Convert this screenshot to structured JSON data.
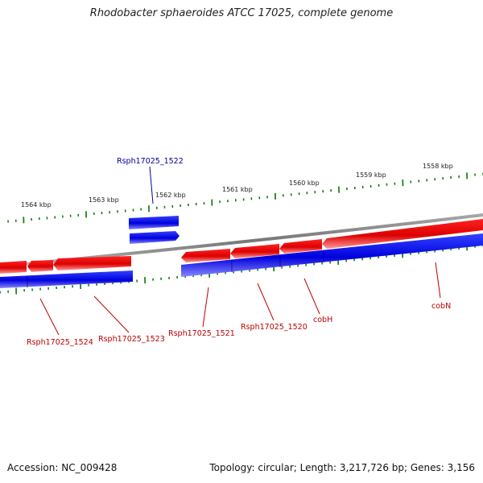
{
  "title": "Rhodobacter sphaeroides ATCC 17025, complete genome",
  "footer": {
    "accession": "Accession: NC_009428",
    "summary": "Topology: circular; Length: 3,217,726 bp; Genes: 3,156"
  },
  "colors": {
    "forward": "#0000ee",
    "reverse": "#ee0000",
    "ticks": "#007700",
    "backbone": "#888888",
    "label_forward": "#000099",
    "label_reverse": "#bb0000"
  },
  "scale_labels": [
    "1564 kbp",
    "1563 kbp",
    "1562 kbp",
    "1561 kbp",
    "1560 kbp",
    "1559 kbp",
    "1558 kbp"
  ],
  "gene_labels": [
    {
      "id": "g1522",
      "text": "Rsph17025_1522",
      "strand": "forward"
    },
    {
      "id": "g1524",
      "text": "Rsph17025_1524",
      "strand": "reverse"
    },
    {
      "id": "g1523",
      "text": "Rsph17025_1523",
      "strand": "reverse"
    },
    {
      "id": "g1521",
      "text": "Rsph17025_1521",
      "strand": "reverse"
    },
    {
      "id": "g1520",
      "text": "Rsph17025_1520",
      "strand": "reverse"
    },
    {
      "id": "cobH",
      "text": "cobH",
      "strand": "reverse"
    },
    {
      "id": "cobN",
      "text": "cobN",
      "strand": "reverse"
    }
  ]
}
